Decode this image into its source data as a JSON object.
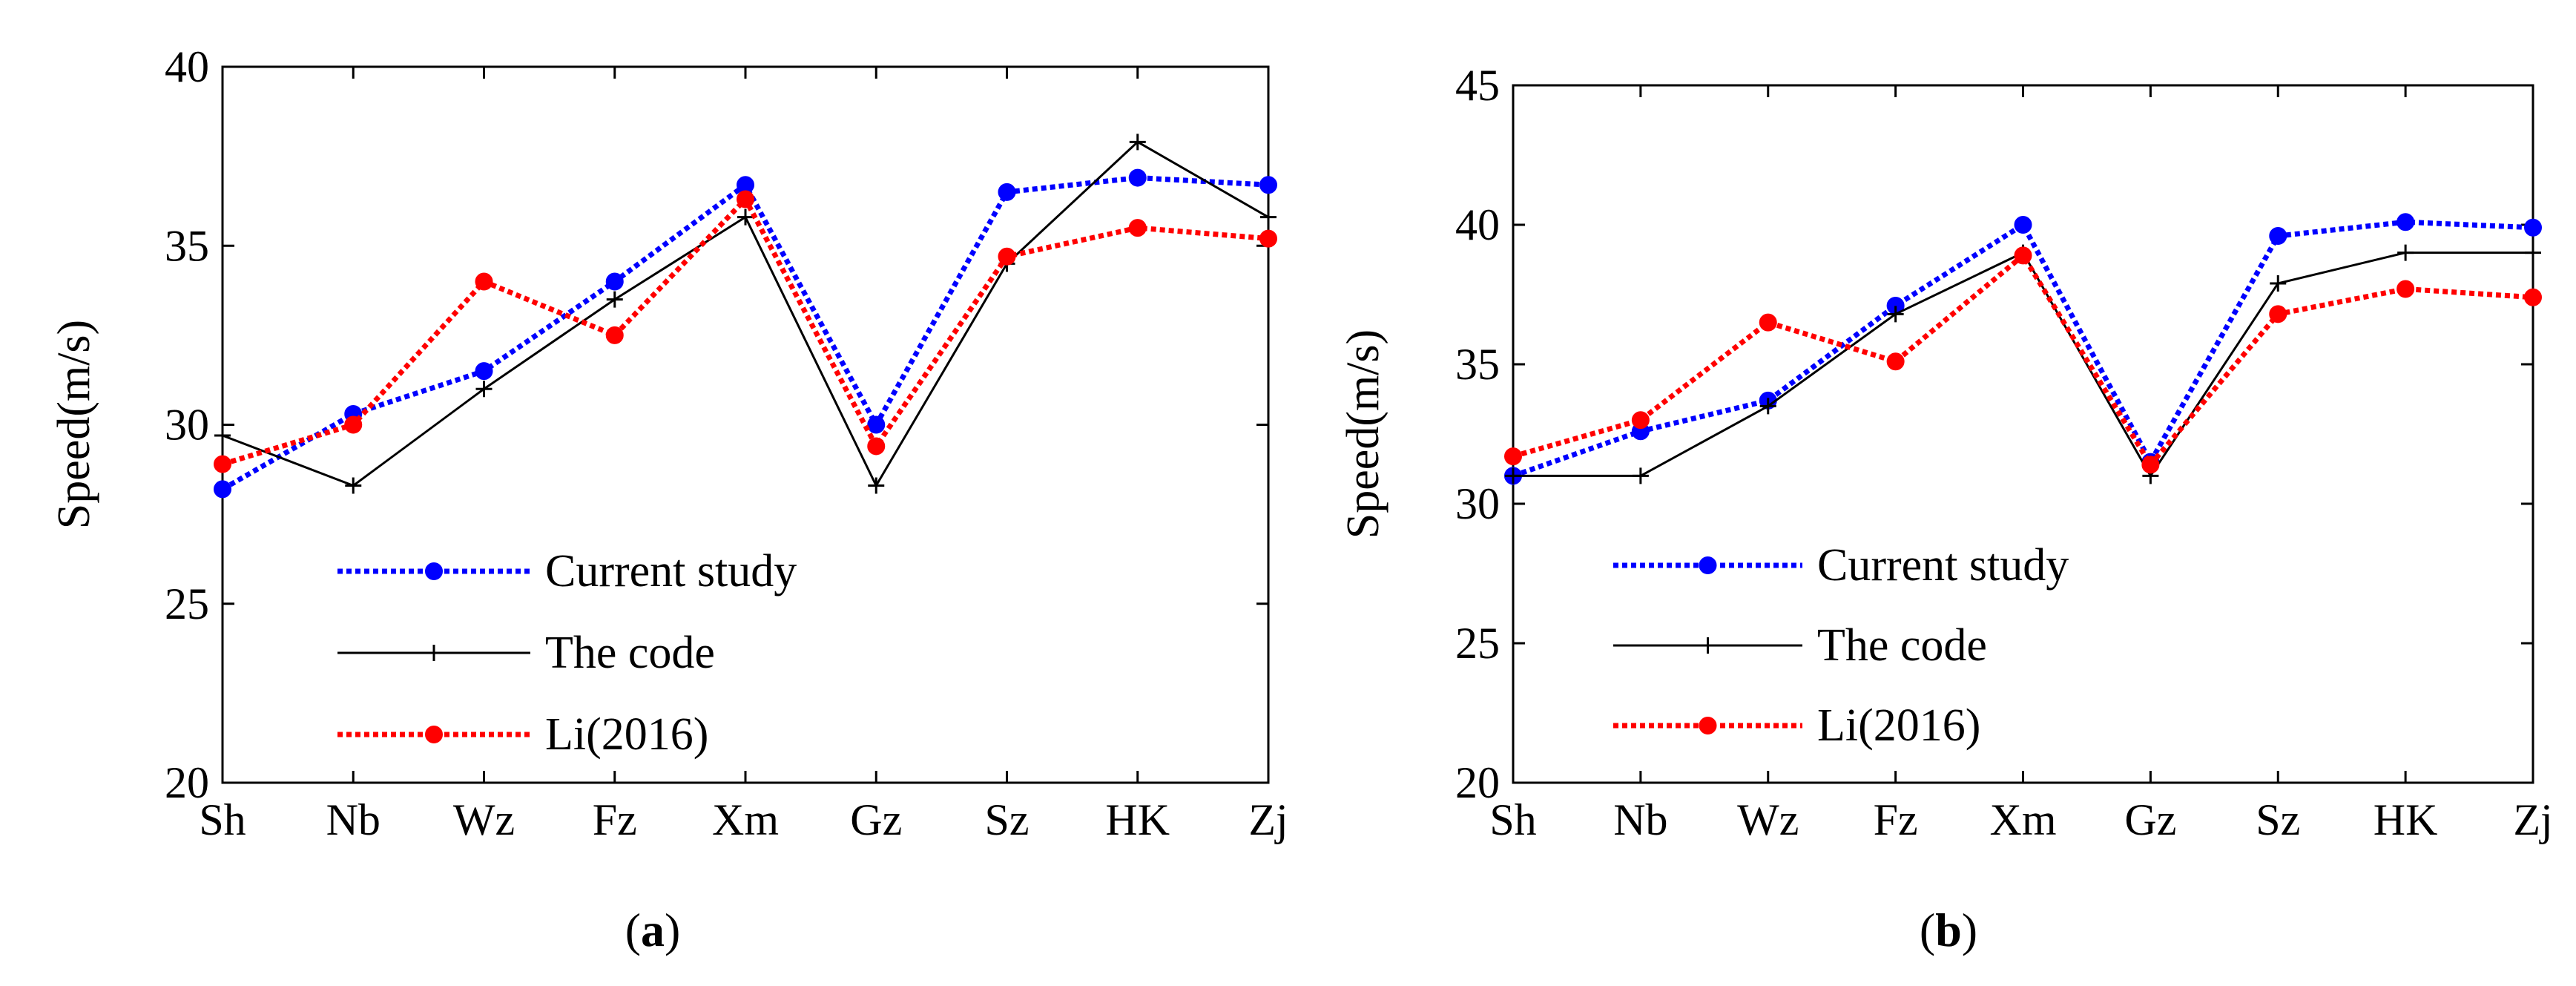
{
  "chart_data": [
    {
      "type": "line",
      "panel_label": "a",
      "categories": [
        "Sh",
        "Nb",
        "Wz",
        "Fz",
        "Xm",
        "Gz",
        "Sz",
        "HK",
        "Zj"
      ],
      "ylabel": "Speed(m/s)",
      "xlabel": "",
      "ylim": [
        20,
        40
      ],
      "yticks": [
        20,
        25,
        30,
        35,
        40
      ],
      "grid": false,
      "legend_position": "bottom-left",
      "series": [
        {
          "name": "Current study",
          "color": "#0000ff",
          "style": "dotted",
          "marker": "circle",
          "values": [
            28.2,
            30.3,
            31.5,
            34.0,
            36.7,
            30.0,
            36.5,
            36.9,
            36.7
          ]
        },
        {
          "name": "The code",
          "color": "#000000",
          "style": "solid",
          "marker": "plus",
          "values": [
            29.7,
            28.3,
            31.0,
            33.5,
            35.8,
            28.3,
            34.5,
            37.9,
            35.8
          ]
        },
        {
          "name": "Li(2016)",
          "color": "#ff0000",
          "style": "dotted",
          "marker": "circle",
          "values": [
            28.9,
            30.0,
            34.0,
            32.5,
            36.3,
            29.4,
            34.7,
            35.5,
            35.2
          ]
        }
      ]
    },
    {
      "type": "line",
      "panel_label": "b",
      "categories": [
        "Sh",
        "Nb",
        "Wz",
        "Fz",
        "Xm",
        "Gz",
        "Sz",
        "HK",
        "Zj"
      ],
      "ylabel": "Speed(m/s)",
      "xlabel": "",
      "ylim": [
        20,
        45
      ],
      "yticks": [
        20,
        25,
        30,
        35,
        40,
        45
      ],
      "grid": false,
      "legend_position": "bottom-left",
      "series": [
        {
          "name": "Current study",
          "color": "#0000ff",
          "style": "dotted",
          "marker": "circle",
          "values": [
            31.0,
            32.6,
            33.7,
            37.1,
            40.0,
            31.5,
            39.6,
            40.1,
            39.9
          ]
        },
        {
          "name": "The code",
          "color": "#000000",
          "style": "solid",
          "marker": "plus",
          "values": [
            31.0,
            31.0,
            33.5,
            36.8,
            39.0,
            31.0,
            37.9,
            39.0,
            39.0
          ]
        },
        {
          "name": "Li(2016)",
          "color": "#ff0000",
          "style": "dotted",
          "marker": "circle",
          "values": [
            31.7,
            33.0,
            36.5,
            35.1,
            38.9,
            31.4,
            36.8,
            37.7,
            37.4
          ]
        }
      ]
    }
  ]
}
